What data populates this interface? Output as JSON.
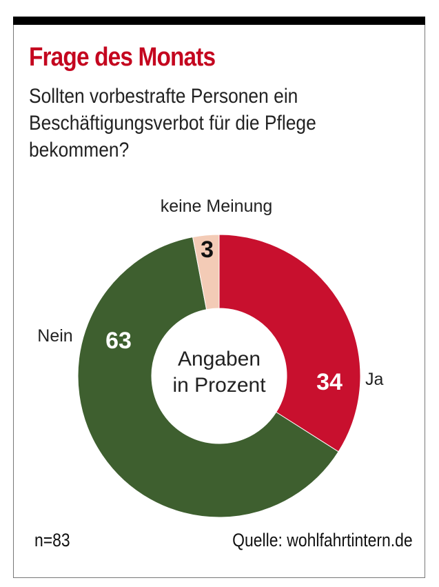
{
  "title": "Frage des Monats",
  "question": "Sollten vorbestrafte Personen ein Beschäftigungsverbot für die Pflege bekommen?",
  "chart_data": {
    "type": "pie",
    "subtype": "donut",
    "center_label": [
      "Angaben",
      "in Prozent"
    ],
    "categories": [
      "Ja",
      "Nein",
      "keine Meinung"
    ],
    "values": [
      34,
      63,
      3
    ],
    "colors": [
      "#c8102e",
      "#3e5f2f",
      "#f3cbb6"
    ],
    "value_label_colors": [
      "#ffffff",
      "#ffffff",
      "#111111"
    ]
  },
  "footer": {
    "n": "n=83",
    "source": "Quelle: wohlfahrtintern.de"
  }
}
